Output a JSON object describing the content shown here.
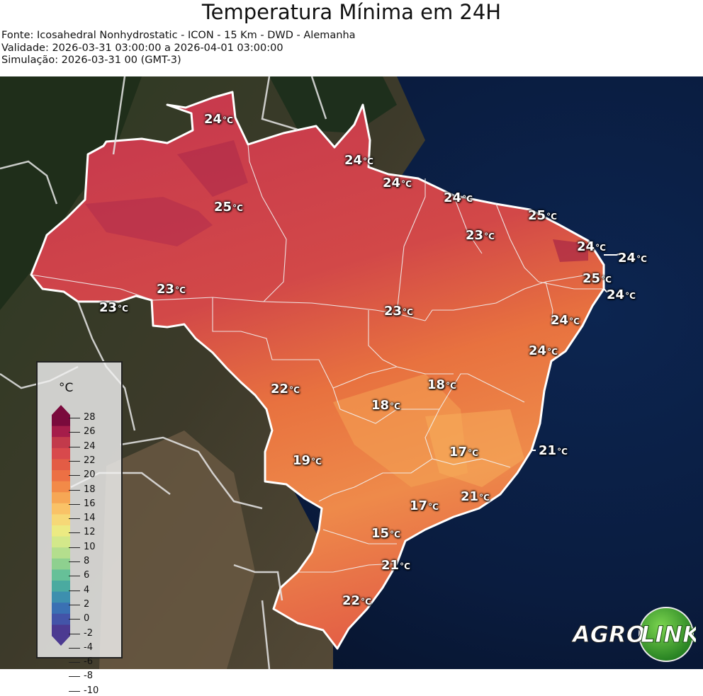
{
  "title": "Temperatura Mínima em 24H",
  "meta": [
    "Fonte: Icosahedral Nonhydrostatic - ICON - 15 Km - DWD - Alemanha",
    "Validade: 2026-03-31 03:00:00 a 2026-04-01 03:00:00",
    "Simulação: 2026-03-31 00 (GMT-3)"
  ],
  "legend": {
    "unit": "°C",
    "ticks": [
      "28",
      "26",
      "24",
      "22",
      "20",
      "18",
      "16",
      "14",
      "12",
      "10",
      "8",
      "6",
      "4",
      "2",
      "0",
      "-2",
      "-4",
      "-6",
      "-8",
      "-10"
    ],
    "colors": [
      "#7a0a3c",
      "#a51d4a",
      "#c23a4b",
      "#d8494c",
      "#e35c45",
      "#ec7044",
      "#f28a48",
      "#f6a755",
      "#f9c267",
      "#f6d877",
      "#ecea82",
      "#d3e88a",
      "#b4de8d",
      "#8ed08f",
      "#66c098",
      "#4aaaa0",
      "#3d8fae",
      "#3a70b3",
      "#4354a8",
      "#4c3a91"
    ]
  },
  "cities": [
    {
      "v": "24",
      "u": "°C"
    },
    {
      "v": "24",
      "u": "°C"
    },
    {
      "v": "24",
      "u": "°C"
    },
    {
      "v": "24",
      "u": "°C"
    },
    {
      "v": "25",
      "u": "°C"
    },
    {
      "v": "25",
      "u": "°C"
    },
    {
      "v": "23",
      "u": "°C"
    },
    {
      "v": "24",
      "u": "°C"
    },
    {
      "v": "24",
      "u": "°C"
    },
    {
      "v": "25",
      "u": "°C"
    },
    {
      "v": "24",
      "u": "°C"
    },
    {
      "v": "23",
      "u": "°C"
    },
    {
      "v": "23",
      "u": "°C"
    },
    {
      "v": "23",
      "u": "°C"
    },
    {
      "v": "24",
      "u": "°C"
    },
    {
      "v": "24",
      "u": "°C"
    },
    {
      "v": "22",
      "u": "°C"
    },
    {
      "v": "18",
      "u": "°C"
    },
    {
      "v": "18",
      "u": "°C"
    },
    {
      "v": "17",
      "u": "°C"
    },
    {
      "v": "21",
      "u": "°C"
    },
    {
      "v": "19",
      "u": "°C"
    },
    {
      "v": "21",
      "u": "°C"
    },
    {
      "v": "17",
      "u": "°C"
    },
    {
      "v": "15",
      "u": "°C"
    },
    {
      "v": "21",
      "u": "°C"
    },
    {
      "v": "22",
      "u": "°C"
    }
  ],
  "logo": {
    "left": "AGRO",
    "right": "LINK"
  }
}
